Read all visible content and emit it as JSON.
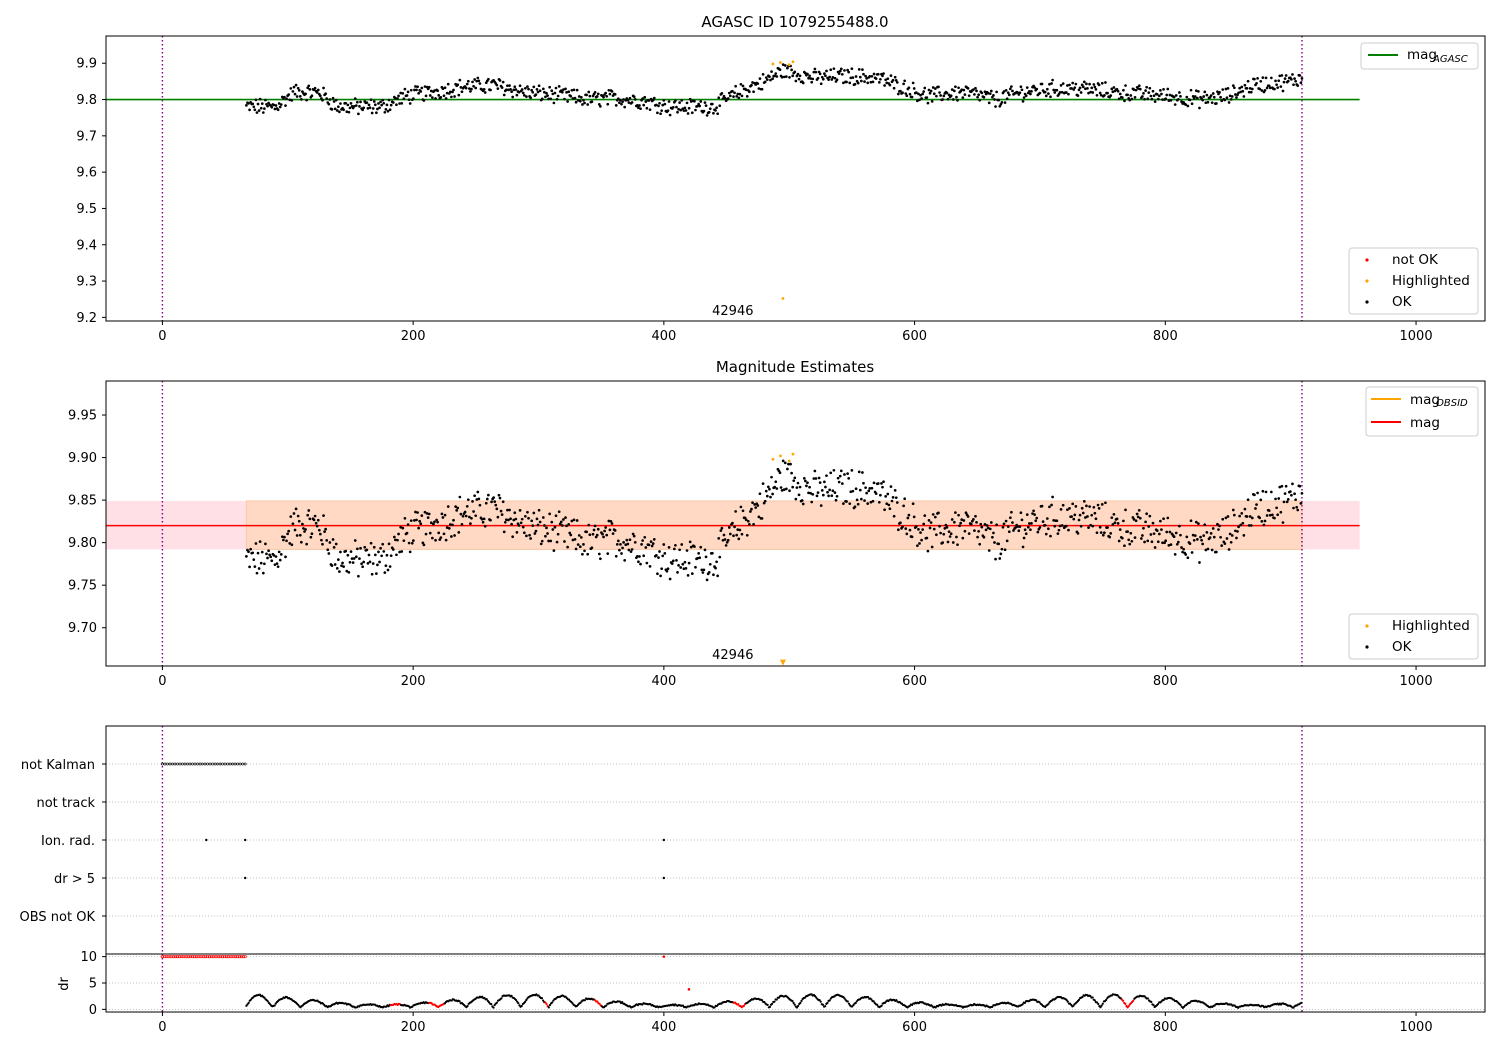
{
  "chart_data": [
    {
      "type": "scatter",
      "title": "AGASC ID 1079255488.0",
      "xlim": [
        -45,
        1055
      ],
      "ylim": [
        9.19,
        9.975
      ],
      "xticks": [
        "0",
        "200",
        "400",
        "600",
        "800",
        "1000"
      ],
      "xtick_values": [
        0,
        200,
        400,
        600,
        800,
        1000
      ],
      "yticks": [
        "9.2",
        "9.3",
        "9.4",
        "9.5",
        "9.6",
        "9.7",
        "9.8",
        "9.9"
      ],
      "ytick_values": [
        9.2,
        9.3,
        9.4,
        9.5,
        9.6,
        9.7,
        9.8,
        9.9
      ],
      "vlines": [
        0,
        909
      ],
      "hline": {
        "label": "mag",
        "subscript": "AGASC",
        "value": 9.8,
        "x_range": [
          -45,
          955
        ],
        "color": "#008000"
      },
      "obsid_label": {
        "text": "42946",
        "x": 455,
        "y": 9.218
      },
      "highlighted_points": [
        {
          "x": 487,
          "y": 9.898
        },
        {
          "x": 493,
          "y": 9.902
        },
        {
          "x": 500,
          "y": 9.896
        },
        {
          "x": 503,
          "y": 9.904
        },
        {
          "x": 495,
          "y": 9.252
        }
      ],
      "ok_series": {
        "x_start": 67,
        "x_end": 909,
        "count": 1000
      },
      "legend_top": [
        {
          "label": "mag",
          "subscript": "AGASC",
          "color": "#008000"
        }
      ],
      "legend_bottom": [
        {
          "label": "not OK",
          "color": "#ff0000"
        },
        {
          "label": "Highlighted",
          "color": "#ffa500"
        },
        {
          "label": "OK",
          "color": "#000000"
        }
      ]
    },
    {
      "type": "scatter",
      "title": "Magnitude Estimates",
      "xlim": [
        -45,
        1055
      ],
      "ylim": [
        9.655,
        9.99
      ],
      "xticks": [
        "0",
        "200",
        "400",
        "600",
        "800",
        "1000"
      ],
      "xtick_values": [
        0,
        200,
        400,
        600,
        800,
        1000
      ],
      "yticks": [
        "9.70",
        "9.75",
        "9.80",
        "9.85",
        "9.90",
        "9.95"
      ],
      "ytick_values": [
        9.7,
        9.75,
        9.8,
        9.85,
        9.9,
        9.95
      ],
      "vlines": [
        0,
        909
      ],
      "mag_line": {
        "label": "mag",
        "value": 9.82,
        "color": "#ff0000"
      },
      "band": {
        "y_low": 9.792,
        "y_high": 9.849
      },
      "mag_obsid": {
        "label": "mag",
        "subscript": "OBSID",
        "color": "#ffa500"
      },
      "obsid_label": {
        "text": "42946",
        "x": 455,
        "y": 9.661
      },
      "obsid_marker": {
        "x": 495,
        "y": 9.659
      },
      "highlighted_points": [
        {
          "x": 487,
          "y": 9.898
        },
        {
          "x": 493,
          "y": 9.902
        },
        {
          "x": 500,
          "y": 9.896
        },
        {
          "x": 503,
          "y": 9.904
        }
      ],
      "legend_top": [
        {
          "label": "mag",
          "subscript": "OBSID",
          "color": "#ffa500"
        },
        {
          "label": "mag",
          "color": "#ff0000"
        }
      ],
      "legend_bottom": [
        {
          "label": "Highlighted",
          "color": "#ffa500"
        },
        {
          "label": "OK",
          "color": "#000000"
        }
      ]
    },
    {
      "type": "scatter",
      "title": "",
      "xlim": [
        -45,
        1055
      ],
      "categories": [
        "not Kalman",
        "not track",
        "Ion. rad.",
        "dr > 5",
        "OBS not OK"
      ],
      "flag_points": {
        "not Kalman": {
          "x_range": [
            0,
            66
          ],
          "step": 2
        },
        "not track": [],
        "Ion. rad.": [
          35,
          66,
          400
        ],
        "dr > 5": [
          66,
          400
        ],
        "OBS not OK": []
      },
      "vlines": [
        0,
        909
      ]
    },
    {
      "type": "scatter",
      "title": "",
      "ylabel": "dr",
      "xlim": [
        -45,
        1055
      ],
      "ylim": [
        -0.5,
        10.5
      ],
      "xticks": [
        "0",
        "200",
        "400",
        "600",
        "800",
        "1000"
      ],
      "xtick_values": [
        0,
        200,
        400,
        600,
        800,
        1000
      ],
      "yticks": [
        "0",
        "5",
        "10"
      ],
      "ytick_values": [
        0,
        5,
        10
      ],
      "saturated_points": {
        "x_range": [
          0,
          66
        ],
        "y": 10,
        "color": "#ff0000"
      },
      "isolated_red": [
        {
          "x": 400,
          "y": 10
        },
        {
          "x": 420,
          "y": 3.8
        }
      ],
      "red_segments": [
        [
          182,
          190
        ],
        [
          212,
          225
        ],
        [
          305,
          308
        ],
        [
          345,
          350
        ],
        [
          455,
          465
        ],
        [
          765,
          775
        ]
      ],
      "ok_series": {
        "x_start": 67,
        "x_end": 909
      },
      "vlines": [
        0,
        909
      ]
    }
  ]
}
